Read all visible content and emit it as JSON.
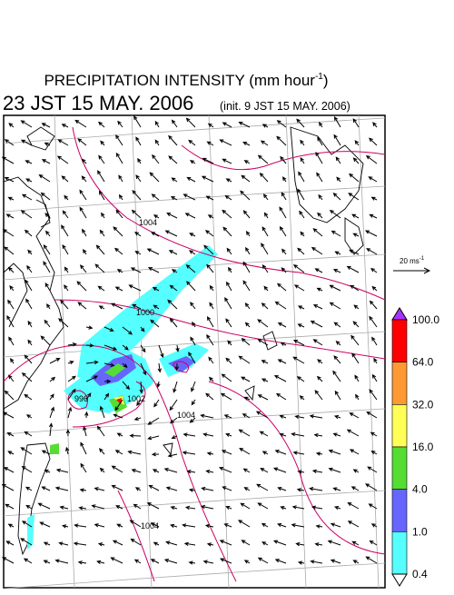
{
  "header": {
    "title": {
      "main": "PRECIPITATION INTENSITY (mm hour",
      "exponent": "-1",
      "close": ")"
    },
    "valid_time": "23 JST 15 MAY. 2006",
    "init_time": "(init. 9 JST 15 MAY. 2006)"
  },
  "vector_scale": {
    "label": "20 ms",
    "exponent": "-1"
  },
  "colorbar": {
    "labels": [
      "100.0",
      "64.0",
      "32.0",
      "16.0",
      "4.0",
      "1.0",
      "0.4"
    ],
    "colors": [
      "#ff0000",
      "#ff9933",
      "#ffff55",
      "#55dd33",
      "#6666ff",
      "#55ffff"
    ],
    "over_color": "#aa33ff",
    "under_color": "#ffffff"
  },
  "contour_labels": [
    "1004",
    "1000",
    "996",
    "1002",
    "1004",
    "1004"
  ]
}
